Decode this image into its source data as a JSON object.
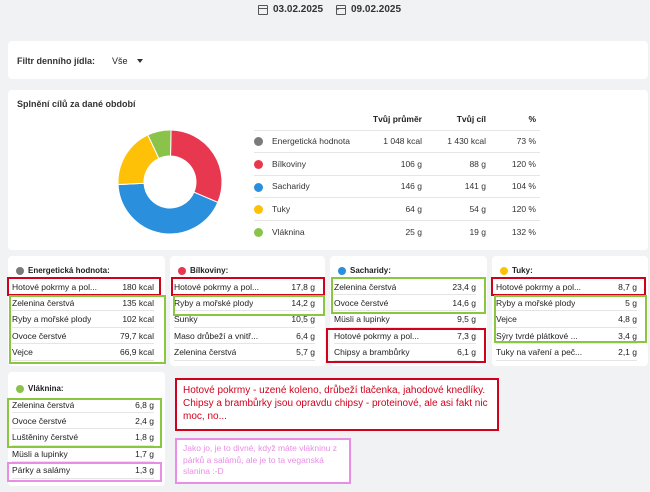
{
  "dates": {
    "from": "03.02.2025",
    "to": "09.02.2025",
    "separator": "-"
  },
  "filter": {
    "label": "Filtr denního jídla:",
    "value": "Vše"
  },
  "summary": {
    "title": "Splnění cílů za dané období",
    "headers": {
      "average": "Tvůj průměr",
      "goal": "Tvůj cíl",
      "percent": "%"
    },
    "rows": [
      {
        "name": "Energetická hodnota",
        "average": "1 048 kcal",
        "goal": "1 430 kcal",
        "percent": "73 %",
        "color": "#7a7a7a"
      },
      {
        "name": "Bílkoviny",
        "average": "106 g",
        "goal": "88 g",
        "percent": "120 %",
        "color": "#e8384f"
      },
      {
        "name": "Sacharidy",
        "average": "146 g",
        "goal": "141 g",
        "percent": "104 %",
        "color": "#2a8fdc"
      },
      {
        "name": "Tuky",
        "average": "64 g",
        "goal": "54 g",
        "percent": "120 %",
        "color": "#ffc107"
      },
      {
        "name": "Vláknina",
        "average": "25 g",
        "goal": "19 g",
        "percent": "132 %",
        "color": "#8bc34a"
      }
    ]
  },
  "donut": {
    "segments": [
      {
        "value": 106,
        "color": "#e8384f"
      },
      {
        "value": 146,
        "color": "#2a8fdc"
      },
      {
        "value": 64,
        "color": "#ffc107"
      },
      {
        "value": 25,
        "color": "#8bc34a"
      }
    ]
  },
  "cards": {
    "energy": {
      "title": "Energetická hodnota:",
      "color": "#7a7a7a",
      "items": [
        {
          "name": "Hotové pokrmy a pol...",
          "value": "180 kcal"
        },
        {
          "name": "Zelenina čerstvá",
          "value": "135 kcal"
        },
        {
          "name": "Ryby a mořské plody",
          "value": "102 kcal"
        },
        {
          "name": "Ovoce čerstvé",
          "value": "79,7 kcal"
        },
        {
          "name": "Vejce",
          "value": "66,9 kcal"
        }
      ]
    },
    "protein": {
      "title": "Bílkoviny:",
      "color": "#e8384f",
      "items": [
        {
          "name": "Hotové pokrmy a pol...",
          "value": "17,8 g"
        },
        {
          "name": "Ryby a mořské plody",
          "value": "14,2 g"
        },
        {
          "name": "Šunky",
          "value": "10,5 g"
        },
        {
          "name": "Maso drůbeží a vnitř...",
          "value": "6,4 g"
        },
        {
          "name": "Zelenina čerstvá",
          "value": "5,7 g"
        }
      ]
    },
    "carbs": {
      "title": "Sacharidy:",
      "color": "#2a8fdc",
      "items": [
        {
          "name": "Zelenina čerstvá",
          "value": "23,4 g"
        },
        {
          "name": "Ovoce čerstvé",
          "value": "14,6 g"
        },
        {
          "name": "Müsli a lupinky",
          "value": "9,5 g"
        },
        {
          "name": "Hotové pokrmy a pol...",
          "value": "7,3 g"
        },
        {
          "name": "Chipsy a brambůrky",
          "value": "6,1 g"
        }
      ]
    },
    "fat": {
      "title": "Tuky:",
      "color": "#ffc107",
      "items": [
        {
          "name": "Hotové pokrmy a pol...",
          "value": "8,7 g"
        },
        {
          "name": "Ryby a mořské plody",
          "value": "5 g"
        },
        {
          "name": "Vejce",
          "value": "4,8 g"
        },
        {
          "name": "Sýry tvrdé plátkové ...",
          "value": "3,4 g"
        },
        {
          "name": "Tuky na vaření a peč...",
          "value": "2,1 g"
        }
      ]
    },
    "fiber": {
      "title": "Vláknina:",
      "color": "#8bc34a",
      "items": [
        {
          "name": "Zelenina čerstvá",
          "value": "6,8 g"
        },
        {
          "name": "Ovoce čerstvé",
          "value": "2,4 g"
        },
        {
          "name": "Luštěniny čerstvé",
          "value": "1,8 g"
        },
        {
          "name": "Müsli a lupinky",
          "value": "1,7 g"
        },
        {
          "name": "Párky a salámy",
          "value": "1,3 g"
        }
      ]
    }
  },
  "notes": {
    "red": "Hotové pokrmy - uzené koleno, drůbeží tlačenka, jahodové knedlíky. Chipsy a brambůrky jsou opravdu chipsy - proteinové, ale asi fakt nic moc, no...",
    "pink": "Jako jo, je to divné, když máte vlákninu z párků a salámů, ale je to ta veganská slanina :-D"
  }
}
